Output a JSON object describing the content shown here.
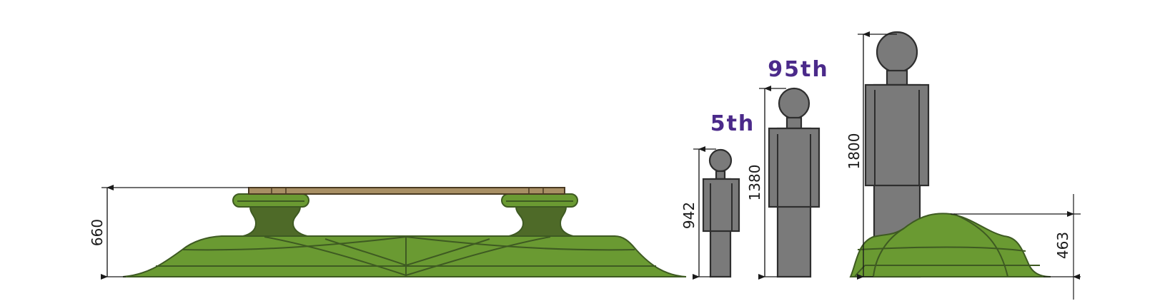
{
  "dimensions": {
    "bench_height": "660",
    "person_5th_height": "942",
    "person_95th_height": "1380",
    "adult_height": "1800",
    "mound_height": "463"
  },
  "labels": {
    "percentile_5": "5th",
    "percentile_95": "95th"
  },
  "colors": {
    "green": "#6a9a32",
    "green_dark": "#4e6a28",
    "person_gray": "#7a7a7a",
    "label_purple": "#4b2a8a",
    "plank": "#a88f64"
  }
}
